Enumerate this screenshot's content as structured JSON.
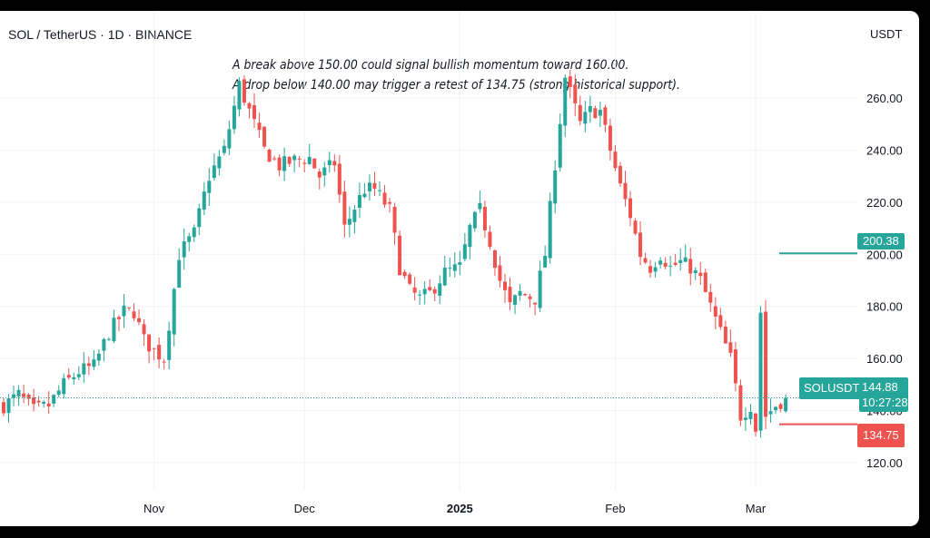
{
  "header": {
    "symbol_title": "SOL / TetherUS · 1D · BINANCE",
    "currency": "USDT"
  },
  "annotations": [
    "A break above 150.00 could signal bullish momentum toward 160.00.",
    "A drop below 140.00 may trigger a retest of 134.75 (strong historical support)."
  ],
  "badges": {
    "symbol": "SOLUSDT",
    "last_price": "144.88",
    "countdown": "10:27:28",
    "level_high": "200.38",
    "level_low": "134.75"
  },
  "colors": {
    "up": "#26a69a",
    "down": "#ef5350"
  },
  "chart_data": {
    "type": "candlestick",
    "interval": "1D",
    "y_axis": {
      "min": 108,
      "max": 280,
      "ticks": [
        "120.00",
        "140.00",
        "160.00",
        "180.00",
        "200.00",
        "220.00",
        "240.00",
        "260.00"
      ]
    },
    "x_axis": {
      "ticks": [
        {
          "label": "Nov",
          "index": 30,
          "bold": false
        },
        {
          "label": "Dec",
          "index": 60,
          "bold": false
        },
        {
          "label": "2025",
          "index": 91,
          "bold": true
        },
        {
          "label": "Feb",
          "index": 122,
          "bold": false
        },
        {
          "label": "Mar",
          "index": 150,
          "bold": false
        }
      ]
    },
    "grid": true,
    "last_price": 144.88,
    "horizontal_levels": [
      200.38,
      134.75
    ],
    "close_path": [
      [
        0,
        142
      ],
      [
        3,
        146
      ],
      [
        6,
        140
      ],
      [
        9,
        142
      ],
      [
        12,
        150
      ],
      [
        15,
        155
      ],
      [
        18,
        157
      ],
      [
        21,
        170
      ],
      [
        24,
        178
      ],
      [
        26,
        178
      ],
      [
        28,
        167
      ],
      [
        30,
        163
      ],
      [
        32,
        160
      ],
      [
        35,
        200
      ],
      [
        38,
        208
      ],
      [
        41,
        230
      ],
      [
        44,
        240
      ],
      [
        47,
        265
      ],
      [
        50,
        250
      ],
      [
        52,
        240
      ],
      [
        55,
        234
      ],
      [
        58,
        236
      ],
      [
        61,
        237
      ],
      [
        63,
        230
      ],
      [
        66,
        235
      ],
      [
        68,
        210
      ],
      [
        70,
        218
      ],
      [
        72,
        225
      ],
      [
        74,
        225
      ],
      [
        77,
        217
      ],
      [
        79,
        195
      ],
      [
        81,
        186
      ],
      [
        83,
        183
      ],
      [
        85,
        185
      ],
      [
        88,
        193
      ],
      [
        91,
        195
      ],
      [
        93,
        210
      ],
      [
        95,
        217
      ],
      [
        97,
        205
      ],
      [
        99,
        190
      ],
      [
        101,
        180
      ],
      [
        103,
        185
      ],
      [
        106,
        183
      ],
      [
        108,
        200
      ],
      [
        110,
        235
      ],
      [
        112,
        268
      ],
      [
        115,
        250
      ],
      [
        117,
        255
      ],
      [
        119,
        255
      ],
      [
        121,
        240
      ],
      [
        123,
        226
      ],
      [
        125,
        215
      ],
      [
        127,
        200
      ],
      [
        129,
        195
      ],
      [
        131,
        200
      ],
      [
        133,
        195
      ],
      [
        135,
        197
      ],
      [
        137,
        195
      ],
      [
        139,
        190
      ],
      [
        141,
        180
      ],
      [
        143,
        170
      ],
      [
        145,
        160
      ],
      [
        147,
        138
      ],
      [
        149,
        142
      ],
      [
        150,
        133
      ],
      [
        151,
        178
      ],
      [
        152,
        138
      ],
      [
        154,
        142
      ],
      [
        156,
        144.88
      ]
    ]
  }
}
